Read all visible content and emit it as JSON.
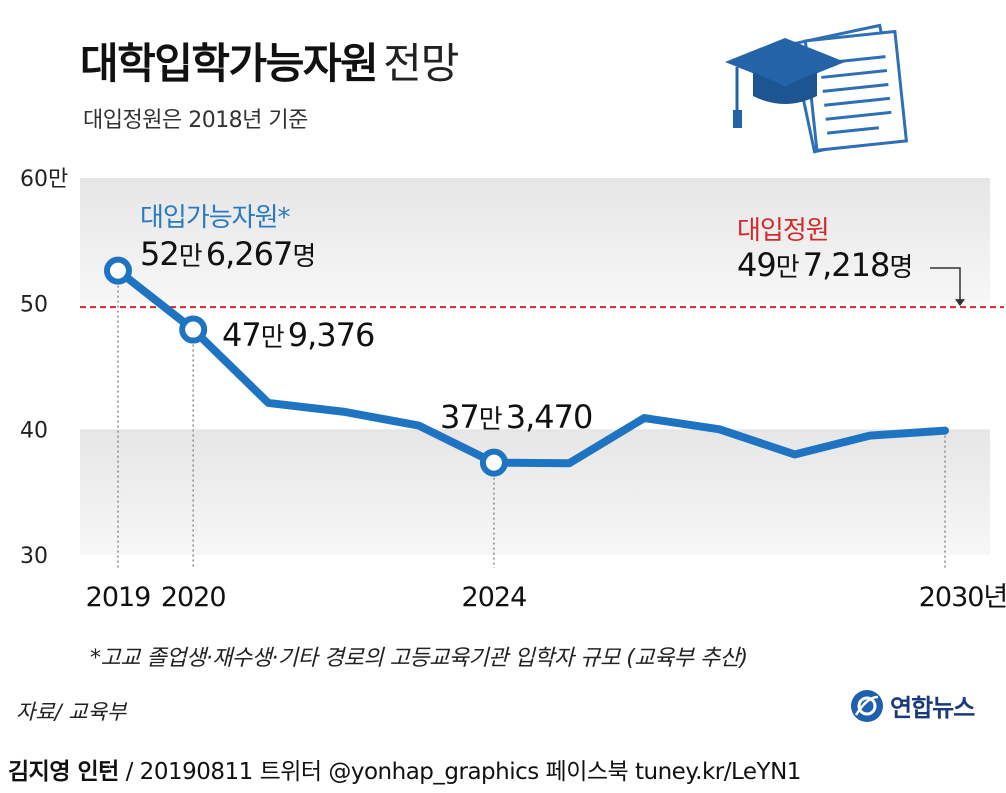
{
  "header": {
    "title_bold": "대학입학가능자원",
    "title_light": "전망",
    "subtitle": "대입정원은 2018년 기준"
  },
  "colors": {
    "series": "#1f74c2",
    "reference": "#d12a2a",
    "band": "#e6e6e6"
  },
  "chart_data": {
    "type": "line",
    "title": "대학입학가능자원 전망",
    "xlabel": "",
    "ylabel": "",
    "ylim": [
      30,
      60
    ],
    "y_ticks": [
      {
        "value": 60,
        "label": "60만"
      },
      {
        "value": 50,
        "label": "50"
      },
      {
        "value": 40,
        "label": "40"
      },
      {
        "value": 30,
        "label": "30"
      }
    ],
    "x_tick_labels": [
      {
        "x": 2019,
        "label": "2019"
      },
      {
        "x": 2020,
        "label": "2020"
      },
      {
        "x": 2024,
        "label": "2024"
      },
      {
        "x": 2030,
        "label": "2030년"
      }
    ],
    "x": [
      2019,
      2020,
      2021,
      2022,
      2023,
      2024,
      2025,
      2026,
      2027,
      2028,
      2029,
      2030
    ],
    "series": [
      {
        "name": "대입가능자원*",
        "values": [
          52.63,
          47.94,
          42.1,
          41.4,
          40.3,
          37.35,
          37.3,
          40.9,
          40.0,
          38.0,
          39.5,
          39.9
        ]
      }
    ],
    "reference_line": {
      "name": "대입정원",
      "value": 49.72,
      "label_big": "49",
      "label_unit": "만",
      "label_rest": "7,218",
      "label_suffix": "명"
    },
    "annotations": [
      {
        "x": 2019,
        "big": "52",
        "unit": "만",
        "rest": "6,267",
        "suffix": "명"
      },
      {
        "x": 2020,
        "big": "47",
        "unit": "만",
        "rest": "9,376",
        "suffix": ""
      },
      {
        "x": 2024,
        "big": "37",
        "unit": "만",
        "rest": "3,470",
        "suffix": ""
      }
    ],
    "footnote": "*고교 졸업생·재수생·기타 경로의 고등교육기관 입학자 규모 (교육부 추산)"
  },
  "footer": {
    "source": "자료/ 교육부",
    "logo_text": "연합뉴스",
    "author": "김지영 인턴",
    "credit_rest": "/ 20190811  트위터 @yonhap_graphics  페이스북 tuney.kr/LeYN1"
  }
}
